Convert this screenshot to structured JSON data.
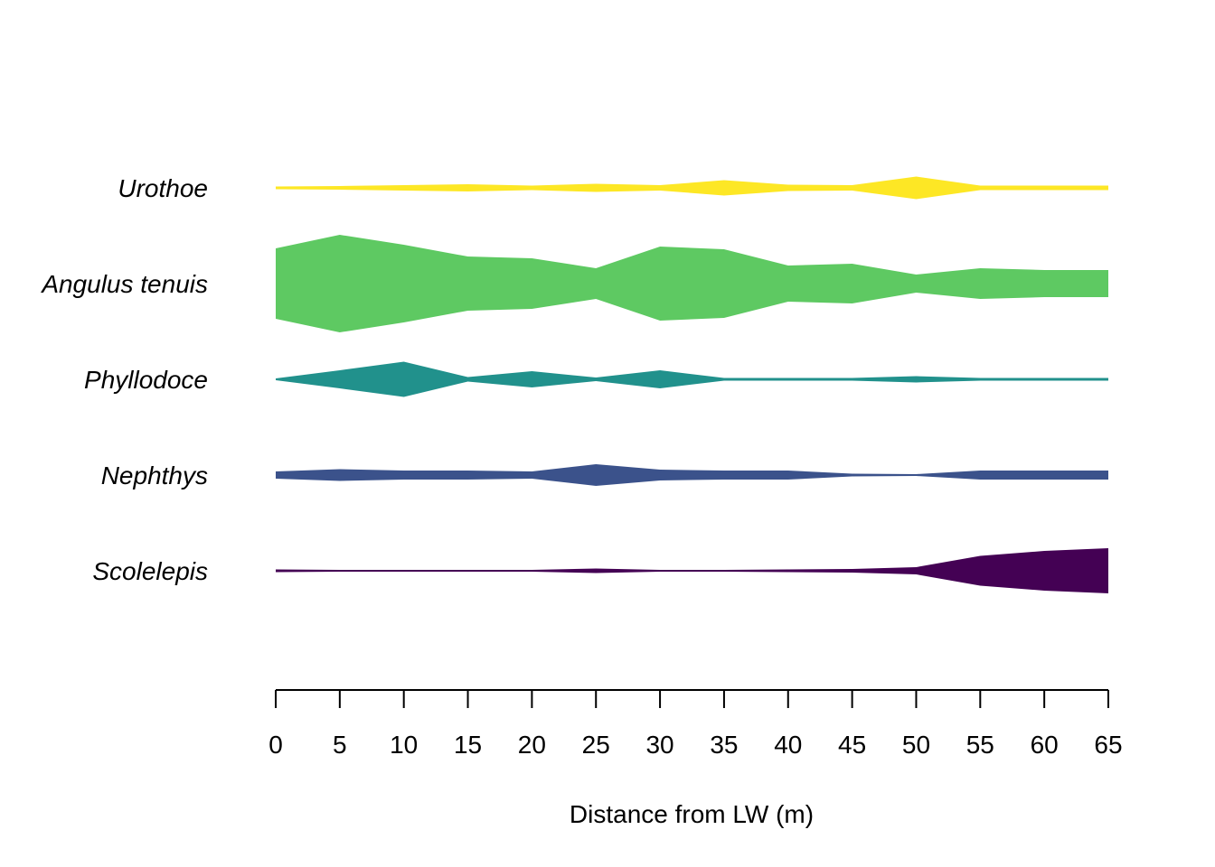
{
  "chart_data": {
    "type": "kite",
    "xlabel": "Distance from LW (m)",
    "x": [
      0,
      5,
      10,
      15,
      20,
      25,
      30,
      35,
      40,
      45,
      50,
      55,
      60,
      65
    ],
    "xlim": [
      0,
      65
    ],
    "x_ticks": [
      "0",
      "5",
      "10",
      "15",
      "20",
      "25",
      "30",
      "35",
      "40",
      "45",
      "50",
      "55",
      "60",
      "65"
    ],
    "width_scale_note": "",
    "series": [
      {
        "name": "Urothoe",
        "color": "#FDE725",
        "values": [
          3,
          4,
          6,
          8,
          5,
          9,
          6,
          17,
          7,
          6,
          25,
          5,
          5,
          5
        ]
      },
      {
        "name": "Angulus tenuis",
        "color": "#5EC962",
        "values": [
          78,
          108,
          86,
          60,
          56,
          34,
          82,
          76,
          40,
          44,
          20,
          34,
          30,
          30
        ]
      },
      {
        "name": "Phyllodoce",
        "color": "#21918C",
        "values": [
          2,
          20,
          39,
          5,
          18,
          4,
          20,
          3,
          3,
          3,
          7,
          3,
          3,
          3
        ]
      },
      {
        "name": "Nephthys",
        "color": "#3B528B",
        "values": [
          8,
          13,
          10,
          10,
          8,
          24,
          12,
          10,
          10,
          3,
          2,
          10,
          10,
          10
        ]
      },
      {
        "name": "Scolelepis",
        "color": "#440154",
        "values": [
          3,
          2,
          1,
          1,
          2,
          5,
          2,
          2,
          3,
          4,
          8,
          33,
          44,
          50
        ]
      }
    ]
  }
}
